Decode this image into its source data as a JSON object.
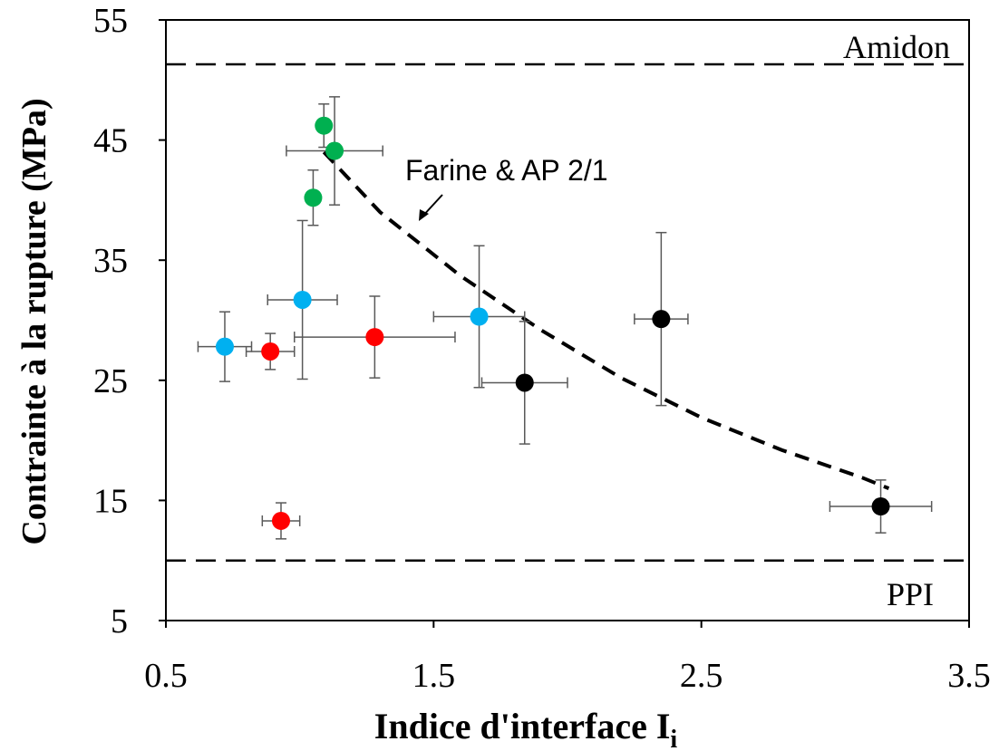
{
  "chart_data": {
    "type": "scatter",
    "title": "",
    "xlabel": "Indice d'interface I",
    "xlabel_sub": "i",
    "ylabel": "Contrainte à  la rupture (MPa)",
    "xlim": [
      0.5,
      3.5
    ],
    "ylim": [
      5,
      55
    ],
    "xticks": [
      "0.5",
      "1.5",
      "2.5",
      "3.5"
    ],
    "xtick_values": [
      0.5,
      1.5,
      2.5,
      3.5
    ],
    "yticks": [
      "5",
      "15",
      "25",
      "35",
      "45",
      "55"
    ],
    "ytick_values": [
      5,
      15,
      25,
      35,
      45,
      55
    ],
    "grid": false,
    "reference_lines": [
      {
        "label": "Amidon",
        "y": 51.3
      },
      {
        "label": "PPI",
        "y": 10.0
      }
    ],
    "annotation": {
      "text": "Farine & AP 2/1",
      "arrow_to": [
        1.44,
        38.0
      ]
    },
    "trend_line": {
      "x": [
        1.09,
        1.3,
        1.6,
        1.9,
        2.2,
        2.5,
        2.8,
        3.1,
        3.2
      ],
      "y": [
        44.0,
        39.0,
        33.7,
        29.2,
        25.2,
        21.9,
        19.2,
        16.9,
        16.0
      ]
    },
    "series": [
      {
        "color": "#00b050",
        "points": [
          {
            "x": 1.09,
            "y": 46.2,
            "xerr": 0.0,
            "yerr": 1.8
          },
          {
            "x": 1.13,
            "y": 44.1,
            "xerr": 0.18,
            "yerr": 4.5
          },
          {
            "x": 1.05,
            "y": 40.2,
            "xerr": 0.0,
            "yerr": 2.3
          }
        ]
      },
      {
        "color": "#00b0f0",
        "points": [
          {
            "x": 0.72,
            "y": 27.8,
            "xerr": 0.1,
            "yerr": 2.9
          },
          {
            "x": 1.01,
            "y": 31.7,
            "xerr": 0.13,
            "yerr": 6.6
          },
          {
            "x": 1.67,
            "y": 30.3,
            "xerr": 0.17,
            "yerr": 5.9
          }
        ]
      },
      {
        "color": "#ff0000",
        "points": [
          {
            "x": 0.89,
            "y": 27.4,
            "xerr": 0.09,
            "yerr": 1.5
          },
          {
            "x": 1.28,
            "y": 28.6,
            "xerr": 0.3,
            "yerr": 3.4
          },
          {
            "x": 0.93,
            "y": 13.3,
            "xerr": 0.07,
            "yerr": 1.5
          }
        ]
      },
      {
        "color": "#000000",
        "points": [
          {
            "x": 1.84,
            "y": 24.8,
            "xerr": 0.16,
            "yerr": 5.1
          },
          {
            "x": 2.35,
            "y": 30.1,
            "xerr": 0.1,
            "yerr": 7.2
          },
          {
            "x": 3.17,
            "y": 14.5,
            "xerr": 0.19,
            "yerr": 2.2
          }
        ]
      }
    ]
  }
}
